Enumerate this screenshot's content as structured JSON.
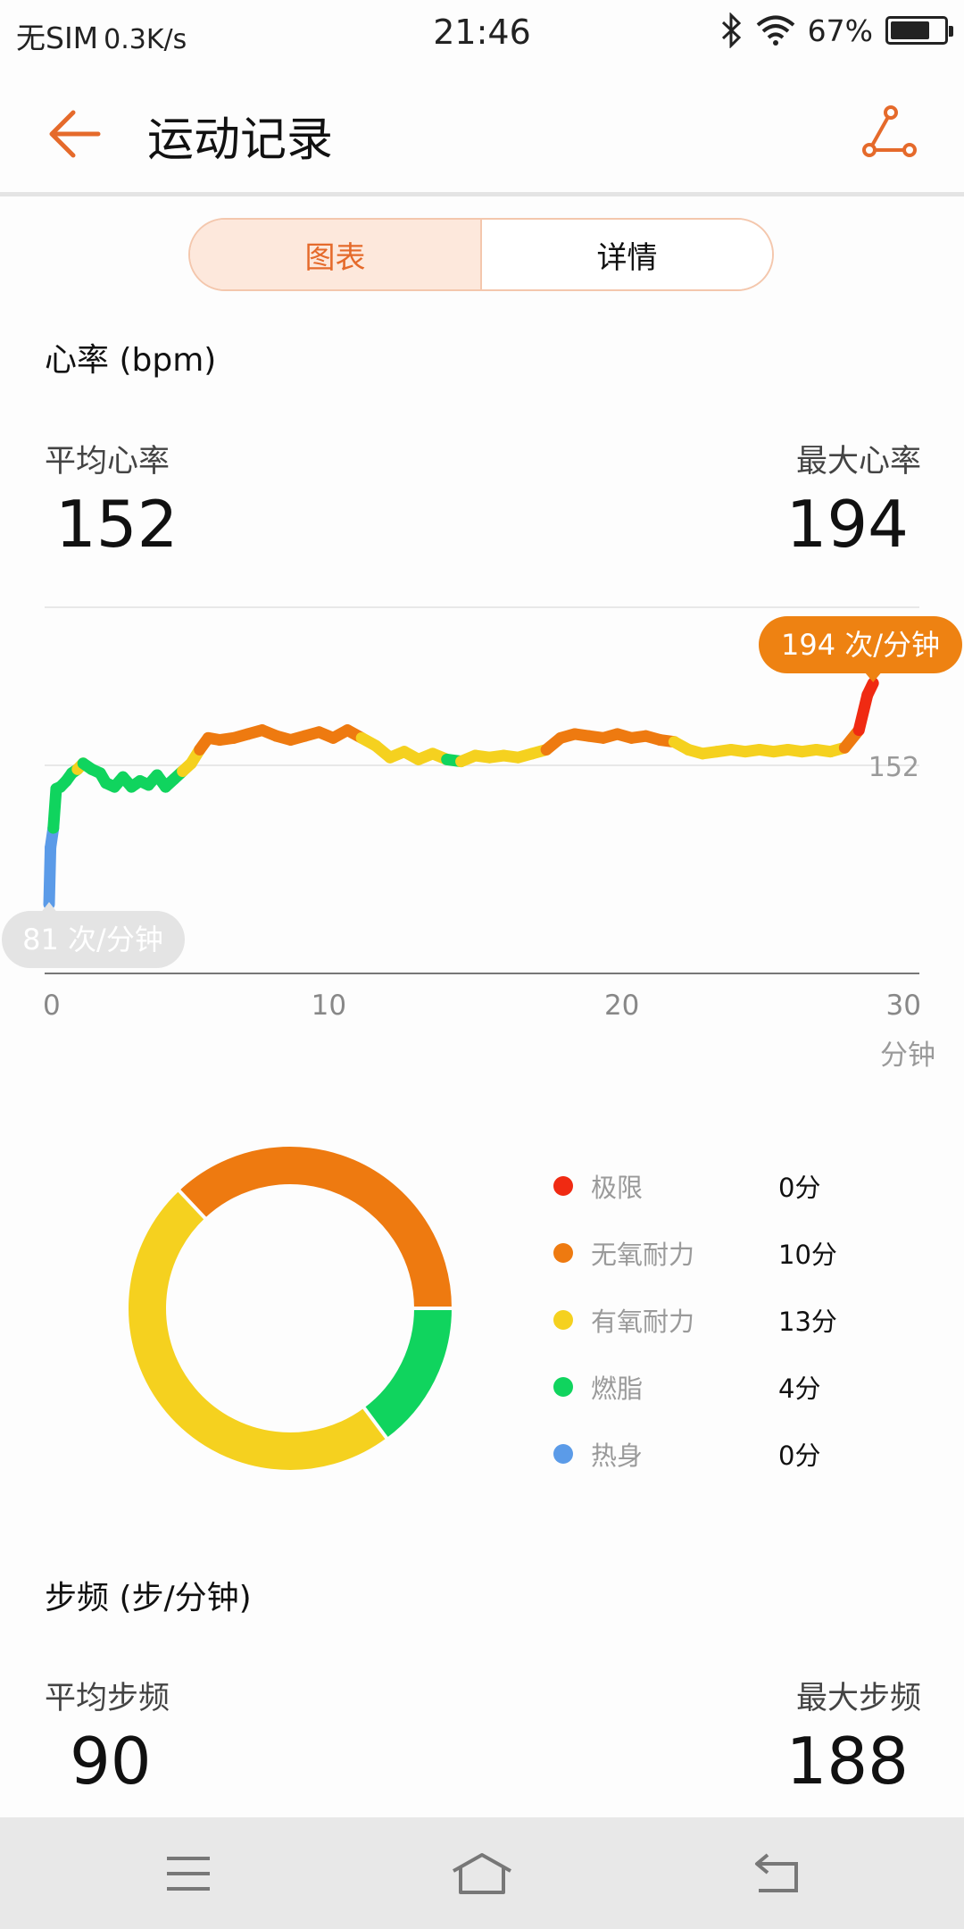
{
  "status_bar": {
    "carrier": "无SIM",
    "speed": "0.3K/s",
    "time": "21:46",
    "battery": "67%",
    "battery_level": 0.67
  },
  "header": {
    "title": "运动记录"
  },
  "tabs": [
    {
      "label": "图表",
      "active": true
    },
    {
      "label": "详情",
      "active": false
    }
  ],
  "heart_rate": {
    "section_title": "心率 (bpm)",
    "avg_label": "平均心率",
    "avg_value": "152",
    "max_label": "最大心率",
    "max_value": "194"
  },
  "chart_data": [
    {
      "type": "line",
      "x_unit": "分钟",
      "xlim": [
        0,
        30
      ],
      "x_ticks": [
        "0",
        "10",
        "20",
        "30"
      ],
      "avg_line_label": "152",
      "max_tooltip": "194 次/分钟",
      "min_tooltip": "81 次/分钟",
      "zone_colors": {
        "warmup": "#5b9be8",
        "fat": "#10d45e",
        "aerobic": "#f5d11f",
        "anaerobic": "#ee7a10",
        "limit": "#f02a12",
        "rest": "#cccccc"
      },
      "points": [
        [
          0,
          81,
          "rest"
        ],
        [
          0.05,
          110,
          "warmup"
        ],
        [
          0.15,
          120,
          "warmup"
        ],
        [
          0.25,
          140,
          "fat"
        ],
        [
          0.4,
          141,
          "fat"
        ],
        [
          0.6,
          144,
          "fat"
        ],
        [
          0.8,
          148,
          "fat"
        ],
        [
          1.0,
          150,
          "fat"
        ],
        [
          1.2,
          153,
          "aerobic"
        ],
        [
          1.5,
          150,
          "fat"
        ],
        [
          1.8,
          148,
          "fat"
        ],
        [
          2.0,
          143,
          "fat"
        ],
        [
          2.3,
          141,
          "fat"
        ],
        [
          2.6,
          146,
          "fat"
        ],
        [
          2.9,
          141,
          "fat"
        ],
        [
          3.2,
          144,
          "fat"
        ],
        [
          3.5,
          142,
          "fat"
        ],
        [
          3.8,
          147,
          "fat"
        ],
        [
          4.1,
          141,
          "fat"
        ],
        [
          4.4,
          145,
          "fat"
        ],
        [
          4.7,
          149,
          "fat"
        ],
        [
          5.0,
          153,
          "aerobic"
        ],
        [
          5.3,
          160,
          "aerobic"
        ],
        [
          5.6,
          166,
          "anaerobic"
        ],
        [
          6.0,
          165,
          "anaerobic"
        ],
        [
          6.5,
          166,
          "anaerobic"
        ],
        [
          7.0,
          168,
          "anaerobic"
        ],
        [
          7.5,
          170,
          "anaerobic"
        ],
        [
          8.0,
          167,
          "anaerobic"
        ],
        [
          8.5,
          165,
          "anaerobic"
        ],
        [
          9.0,
          167,
          "anaerobic"
        ],
        [
          9.5,
          169,
          "anaerobic"
        ],
        [
          10.0,
          166,
          "anaerobic"
        ],
        [
          10.5,
          170,
          "anaerobic"
        ],
        [
          11.0,
          166,
          "anaerobic"
        ],
        [
          11.5,
          162,
          "aerobic"
        ],
        [
          12.0,
          156,
          "aerobic"
        ],
        [
          12.5,
          159,
          "aerobic"
        ],
        [
          13.0,
          155,
          "aerobic"
        ],
        [
          13.5,
          158,
          "aerobic"
        ],
        [
          14.0,
          155,
          "aerobic"
        ],
        [
          14.5,
          154,
          "fat"
        ],
        [
          15.0,
          157,
          "aerobic"
        ],
        [
          15.5,
          156,
          "aerobic"
        ],
        [
          16.0,
          157,
          "aerobic"
        ],
        [
          16.5,
          156,
          "aerobic"
        ],
        [
          17.0,
          158,
          "aerobic"
        ],
        [
          17.5,
          160,
          "aerobic"
        ],
        [
          18.0,
          166,
          "anaerobic"
        ],
        [
          18.5,
          168,
          "anaerobic"
        ],
        [
          19.0,
          167,
          "anaerobic"
        ],
        [
          19.5,
          166,
          "anaerobic"
        ],
        [
          20.0,
          168,
          "anaerobic"
        ],
        [
          20.5,
          166,
          "anaerobic"
        ],
        [
          21.0,
          167,
          "anaerobic"
        ],
        [
          21.5,
          165,
          "anaerobic"
        ],
        [
          22.0,
          164,
          "anaerobic"
        ],
        [
          22.5,
          160,
          "aerobic"
        ],
        [
          23.0,
          158,
          "aerobic"
        ],
        [
          23.5,
          159,
          "aerobic"
        ],
        [
          24.0,
          160,
          "aerobic"
        ],
        [
          24.5,
          159,
          "aerobic"
        ],
        [
          25.0,
          160,
          "aerobic"
        ],
        [
          25.5,
          159,
          "aerobic"
        ],
        [
          26.0,
          160,
          "aerobic"
        ],
        [
          26.5,
          159,
          "aerobic"
        ],
        [
          27.0,
          160,
          "aerobic"
        ],
        [
          27.5,
          159,
          "aerobic"
        ],
        [
          28.0,
          161,
          "aerobic"
        ],
        [
          28.5,
          170,
          "anaerobic"
        ],
        [
          28.8,
          188,
          "limit"
        ],
        [
          29.0,
          194,
          "limit"
        ]
      ]
    },
    {
      "type": "pie",
      "legend": [
        {
          "name": "极限",
          "value": "0分",
          "minutes": 0,
          "color": "#f02a12"
        },
        {
          "name": "无氧耐力",
          "value": "10分",
          "minutes": 10,
          "color": "#ee7a10"
        },
        {
          "name": "有氧耐力",
          "value": "13分",
          "minutes": 13,
          "color": "#f5d11f"
        },
        {
          "name": "燃脂",
          "value": "4分",
          "minutes": 4,
          "color": "#10d45e"
        },
        {
          "name": "热身",
          "value": "0分",
          "minutes": 0,
          "color": "#5b9be8"
        }
      ]
    }
  ],
  "cadence": {
    "section_title": "步频 (步/分钟)",
    "avg_label": "平均步频",
    "avg_value": "90",
    "max_label": "最大步频",
    "max_value": "188"
  },
  "icons": {
    "back": "arrow-left-icon",
    "share": "share-icon",
    "menu": "menu-icon",
    "home": "home-icon",
    "return": "return-icon"
  },
  "accent_color": "#e56a2b"
}
